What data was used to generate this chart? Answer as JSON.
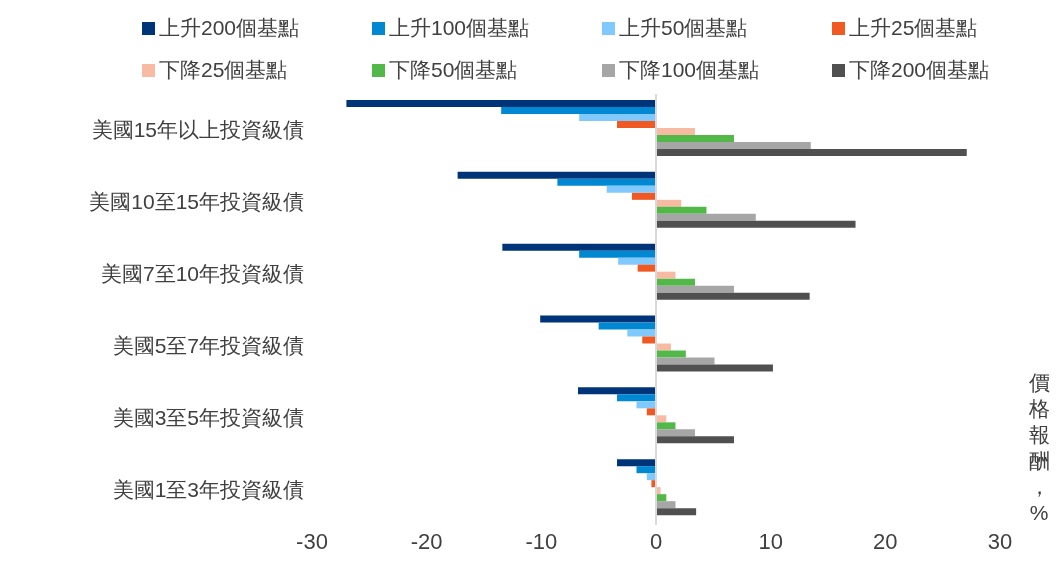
{
  "chart_data": {
    "type": "bar",
    "orientation": "horizontal",
    "xlabel": "價格報酬，%",
    "categories": [
      "美國15年以上投資級債",
      "美國10至15年投資級債",
      "美國7至10年投資級債",
      "美國5至7年投資級債",
      "美國3至5年投資級債",
      "美國1至3年投資級債"
    ],
    "series": [
      {
        "name": "上升200個基點",
        "color": "#003479",
        "values": [
          -27.0,
          -17.3,
          -13.4,
          -10.1,
          -6.8,
          -3.4
        ]
      },
      {
        "name": "上升100個基點",
        "color": "#0089d2",
        "values": [
          -13.5,
          -8.6,
          -6.7,
          -5.0,
          -3.4,
          -1.7
        ]
      },
      {
        "name": "上升50個基點",
        "color": "#80c9ff",
        "values": [
          -6.7,
          -4.3,
          -3.3,
          -2.5,
          -1.7,
          -0.8
        ]
      },
      {
        "name": "上升25個基點",
        "color": "#f05a22",
        "values": [
          -3.4,
          -2.1,
          -1.6,
          -1.2,
          -0.8,
          -0.4
        ]
      },
      {
        "name": "下降25個基點",
        "color": "#f7bba4",
        "values": [
          3.4,
          2.2,
          1.7,
          1.3,
          0.9,
          0.4
        ]
      },
      {
        "name": "下降50個基點",
        "color": "#52b848",
        "values": [
          6.8,
          4.4,
          3.4,
          2.6,
          1.7,
          0.9
        ]
      },
      {
        "name": "下降100個基點",
        "color": "#a6a6a6",
        "values": [
          13.5,
          8.7,
          6.8,
          5.1,
          3.4,
          1.7
        ]
      },
      {
        "name": "下降200個基點",
        "color": "#505050",
        "values": [
          27.1,
          17.4,
          13.4,
          10.2,
          6.8,
          3.5
        ]
      }
    ],
    "xlim": [
      -30,
      30
    ],
    "xticks": [
      -30,
      -20,
      -10,
      0,
      10,
      20,
      30
    ],
    "ref_lines": [
      {
        "axis": "x",
        "value": 0,
        "color": "#d9d9d9"
      }
    ],
    "grid": false,
    "legend": "top"
  }
}
